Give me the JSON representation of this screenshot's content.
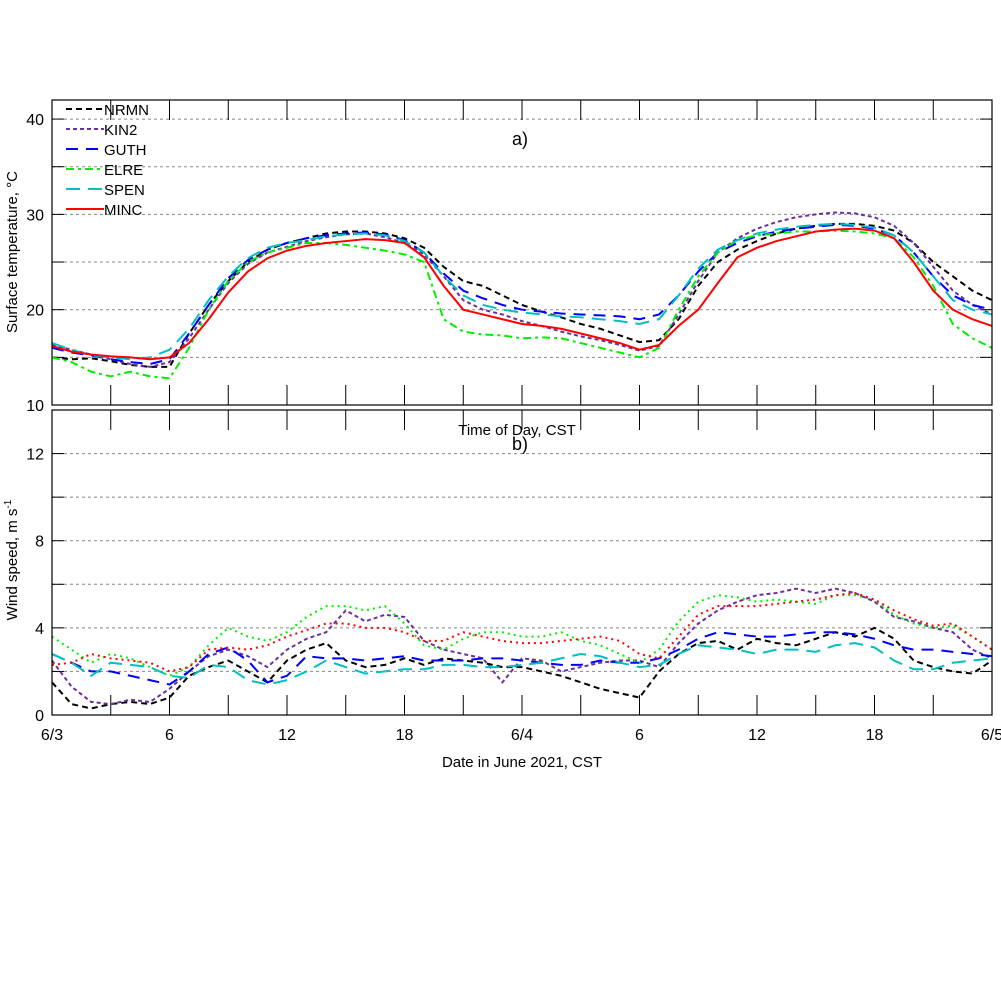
{
  "chart_data": [
    {
      "type": "line",
      "panel_label": "a)",
      "ylabel": "Surface temperature, °C",
      "ylim": [
        10,
        42
      ],
      "yticks": [
        10,
        20,
        30,
        40
      ],
      "grid_y": [
        15,
        20,
        25,
        30,
        35,
        40
      ],
      "xlabel": "Time of Day, CST",
      "xlim_hours": [
        0,
        48
      ],
      "legend_placement": "top-left",
      "series": [
        {
          "name": "NRMN",
          "color": "#000000",
          "dash": "6,4",
          "values": [
            15,
            14.8,
            14.9,
            14.6,
            14.2,
            14,
            14,
            17.5,
            20.5,
            23,
            25,
            26.3,
            27,
            27.5,
            28,
            28.2,
            28.2,
            28,
            27.5,
            26.5,
            24.5,
            23,
            22.5,
            21.5,
            20.5,
            19.8,
            19.2,
            18.5,
            18,
            17.3,
            16.6,
            16.8,
            19,
            22.5,
            25,
            26.3,
            27.2,
            28,
            28.5,
            28.8,
            29,
            29,
            28.8,
            28.3,
            27,
            25,
            23.5,
            22,
            21
          ]
        },
        {
          "name": "KIN2",
          "color": "#6a30a0",
          "dash": "4,3",
          "values": [
            16.3,
            15.8,
            15.3,
            14.8,
            14.3,
            14,
            14.5,
            17,
            20,
            22.8,
            24.8,
            26,
            26.6,
            27.2,
            27.6,
            27.9,
            28,
            27.6,
            27,
            25.8,
            23.5,
            21,
            20,
            19.5,
            18.8,
            18.3,
            17.7,
            17.2,
            16.8,
            16.3,
            15.7,
            16.2,
            19.5,
            23,
            26,
            27.5,
            28.5,
            29.2,
            29.7,
            30,
            30.2,
            30.1,
            29.7,
            28.8,
            27,
            24.5,
            22,
            20.5,
            19.5
          ]
        },
        {
          "name": "GUTH",
          "color": "#0000ff",
          "dash": "12,8",
          "values": [
            16,
            15.5,
            15.2,
            14.8,
            14.5,
            14.3,
            14.8,
            17.5,
            20.5,
            23.3,
            25.2,
            26.3,
            27,
            27.5,
            27.8,
            28,
            28.1,
            27.9,
            27.3,
            26,
            23.8,
            22,
            21.2,
            20.5,
            20,
            19.8,
            19.6,
            19.5,
            19.4,
            19.3,
            19,
            19.5,
            21.5,
            24,
            26,
            27,
            27.7,
            28.2,
            28.5,
            28.7,
            28.9,
            28.8,
            28.5,
            27.8,
            26,
            23.5,
            21.5,
            20.5,
            20
          ]
        },
        {
          "name": "ELRE",
          "color": "#00ee00",
          "dash": "8,4,3,4",
          "values": [
            15,
            14.5,
            13.5,
            13,
            13.5,
            13,
            12.8,
            16,
            20,
            23,
            25,
            26,
            26.5,
            27,
            27,
            26.8,
            26.5,
            26.2,
            25.8,
            25,
            19,
            17.7,
            17.4,
            17.3,
            17,
            17.1,
            17,
            16.5,
            16,
            15.5,
            15,
            16,
            20,
            23.5,
            26,
            27.3,
            27.8,
            28,
            28.2,
            28.2,
            28.3,
            28.2,
            28,
            27.5,
            25.5,
            22.5,
            18.5,
            17,
            16
          ]
        },
        {
          "name": "SPEN",
          "color": "#00c0c0",
          "dash": "14,8",
          "values": [
            16.5,
            15.8,
            15.2,
            15,
            14.8,
            15,
            15.8,
            18,
            21,
            23.5,
            25.4,
            26.5,
            27,
            27.3,
            27.7,
            27.9,
            28,
            27.8,
            27.2,
            26,
            23.5,
            21.5,
            20.5,
            20,
            19.7,
            19.5,
            19.3,
            19.2,
            19,
            18.8,
            18.5,
            19,
            21.5,
            24.3,
            26.3,
            27.3,
            28,
            28.4,
            28.7,
            28.9,
            29,
            28.9,
            28.6,
            27.8,
            26,
            23.5,
            21,
            20,
            19.5
          ]
        },
        {
          "name": "MINC",
          "color": "#ff0000",
          "dash": "",
          "values": [
            16.2,
            15.6,
            15.3,
            15.1,
            15,
            14.8,
            15,
            16.5,
            19,
            21.8,
            24,
            25.4,
            26.2,
            26.7,
            27,
            27.2,
            27.4,
            27.3,
            27,
            25.5,
            22.5,
            20,
            19.5,
            19,
            18.5,
            18.3,
            18,
            17.5,
            17,
            16.5,
            15.8,
            16.3,
            18.3,
            20,
            22.8,
            25.5,
            26.5,
            27.2,
            27.7,
            28.2,
            28.4,
            28.5,
            28.3,
            27.5,
            25,
            22,
            20,
            19,
            18.3
          ]
        }
      ]
    },
    {
      "type": "line",
      "panel_label": "b)",
      "ylabel": "Wind speed, m s",
      "ylabel_superscript": "-1",
      "ylim": [
        0,
        14
      ],
      "yticks": [
        0,
        4,
        8,
        12
      ],
      "grid_y": [
        2,
        4,
        6,
        8,
        10,
        12
      ],
      "xlabel": "Date in June 2021, CST",
      "xlim_hours": [
        0,
        48
      ],
      "xtick_labels": [
        "6/3",
        "6",
        "12",
        "18",
        "6/4",
        "6",
        "12",
        "18",
        "6/5"
      ],
      "series": [
        {
          "name": "NRMN",
          "color": "#000000",
          "dash": "6,4",
          "values": [
            1.5,
            0.5,
            0.3,
            0.5,
            0.6,
            0.5,
            0.8,
            1.8,
            2.2,
            2.5,
            2,
            1.5,
            2.5,
            3,
            3.3,
            2.5,
            2.2,
            2.3,
            2.6,
            2.3,
            2.6,
            2.5,
            2.4,
            2.2,
            2.2,
            2,
            1.8,
            1.5,
            1.2,
            1,
            0.8,
            2,
            2.8,
            3.3,
            3.4,
            3,
            3.5,
            3.3,
            3.2,
            3.5,
            3.8,
            3.6,
            4,
            3.5,
            2.5,
            2.2,
            2,
            1.9,
            2.5
          ]
        },
        {
          "name": "KIN2",
          "color": "#6a30a0",
          "dash": "4,3",
          "values": [
            2.5,
            1.3,
            0.6,
            0.5,
            0.7,
            0.6,
            1.2,
            2,
            2.7,
            3,
            2.7,
            2.2,
            3,
            3.5,
            3.8,
            4.8,
            4.3,
            4.6,
            4.5,
            3.4,
            3,
            2.8,
            2.6,
            1.5,
            2.6,
            2.5,
            2,
            2.2,
            2.4,
            2.5,
            2.5,
            2.2,
            3.3,
            4.2,
            4.8,
            5.2,
            5.5,
            5.6,
            5.8,
            5.6,
            5.8,
            5.6,
            5.2,
            4.5,
            4.3,
            4,
            3.8,
            3,
            2.6
          ]
        },
        {
          "name": "GUTH",
          "color": "#0000ff",
          "dash": "12,8",
          "values": [
            2.8,
            2.4,
            2,
            2,
            1.8,
            1.6,
            1.4,
            2,
            2.8,
            3.1,
            2.5,
            1.5,
            1.8,
            2.7,
            2.6,
            2.6,
            2.5,
            2.6,
            2.7,
            2.5,
            2.5,
            2.5,
            2.6,
            2.6,
            2.5,
            2.4,
            2.3,
            2.3,
            2.5,
            2.4,
            2.4,
            2.6,
            3,
            3.5,
            3.8,
            3.7,
            3.6,
            3.6,
            3.7,
            3.8,
            3.8,
            3.7,
            3.5,
            3.2,
            3,
            3,
            2.9,
            2.8,
            2.7
          ]
        },
        {
          "name": "ELRE",
          "color": "#00ee00",
          "dash": "2,4",
          "values": [
            3.6,
            3,
            2.4,
            2.8,
            2.6,
            2.2,
            1.8,
            2.2,
            3.2,
            4,
            3.6,
            3.4,
            3.8,
            4.5,
            5,
            5,
            4.8,
            5,
            4.2,
            3.2,
            3,
            3.5,
            3.8,
            3.8,
            3.6,
            3.6,
            3.8,
            3.4,
            3.2,
            2.8,
            2.4,
            3,
            4.3,
            5.2,
            5.5,
            5.4,
            5.2,
            5.3,
            5.2,
            5.1,
            5.5,
            5.5,
            5.3,
            4.6,
            4.2,
            4,
            4.1,
            3.6,
            3
          ]
        },
        {
          "name": "SPEN",
          "color": "#00c0c0",
          "dash": "14,8",
          "values": [
            2.8,
            2.4,
            1.8,
            2.4,
            2.3,
            2.2,
            1.8,
            1.7,
            2.3,
            2.2,
            1.6,
            1.4,
            1.6,
            2,
            2.5,
            2.2,
            1.9,
            2,
            2.1,
            2.1,
            2.3,
            2.3,
            2.2,
            2.2,
            2.3,
            2.4,
            2.6,
            2.8,
            2.7,
            2.4,
            2.2,
            2.3,
            2.8,
            3.2,
            3.1,
            3,
            2.8,
            3,
            3,
            2.9,
            3.2,
            3.3,
            3.1,
            2.5,
            2.1,
            2.1,
            2.4,
            2.5,
            2.6
          ]
        },
        {
          "name": "MINC",
          "color": "#ff0000",
          "dash": "2,4",
          "values": [
            2.3,
            2.4,
            2.8,
            2.6,
            2.5,
            2.4,
            2,
            2.2,
            3,
            3.1,
            3,
            3.2,
            3.6,
            3.9,
            4.2,
            4.2,
            4,
            4,
            3.8,
            3.4,
            3.4,
            3.8,
            3.6,
            3.4,
            3.3,
            3.3,
            3.4,
            3.5,
            3.6,
            3.4,
            2.8,
            2.6,
            3.6,
            4.6,
            5,
            5,
            5,
            5.1,
            5.2,
            5.3,
            5.5,
            5.6,
            5.3,
            4.8,
            4.4,
            4.1,
            4.2,
            3.6,
            3
          ]
        }
      ]
    }
  ]
}
